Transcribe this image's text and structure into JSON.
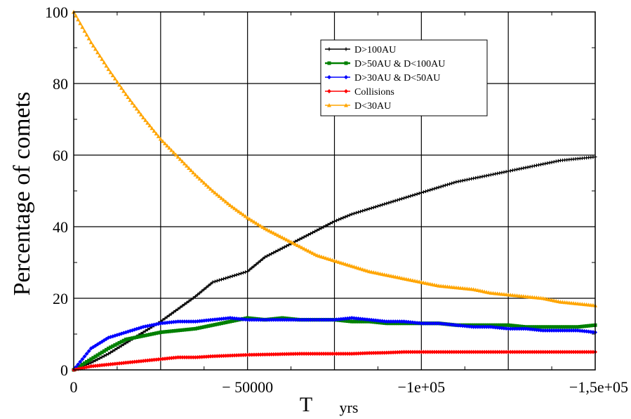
{
  "chart_data": {
    "type": "line",
    "ylabel": "Percentage of comets",
    "xlabel_main": "T",
    "xlabel_unit": "yrs",
    "xlim": [
      0,
      150000
    ],
    "ylim": [
      0,
      100
    ],
    "grid": true,
    "legend_position": "top-right",
    "x_ticks": [
      {
        "value": 0,
        "label": "0"
      },
      {
        "value": 50000,
        "label": "− 50000"
      },
      {
        "value": 100000,
        "label": "−1e+05"
      },
      {
        "value": 150000,
        "label": "−1,5e+05"
      }
    ],
    "y_ticks": [
      {
        "value": 0,
        "label": "0"
      },
      {
        "value": 20,
        "label": "20"
      },
      {
        "value": 40,
        "label": "40"
      },
      {
        "value": 60,
        "label": "60"
      },
      {
        "value": 80,
        "label": "80"
      },
      {
        "value": 100,
        "label": "100"
      }
    ],
    "series": [
      {
        "name": "D>100AU",
        "color": "#000000",
        "marker": "plus",
        "x": [
          0,
          5000,
          10000,
          15000,
          20000,
          25000,
          30000,
          35000,
          40000,
          45000,
          50000,
          55000,
          60000,
          65000,
          70000,
          75000,
          80000,
          85000,
          90000,
          95000,
          100000,
          105000,
          110000,
          115000,
          120000,
          125000,
          130000,
          135000,
          140000,
          145000,
          150000
        ],
        "y": [
          0,
          2,
          4.5,
          7.5,
          10.5,
          13.5,
          17,
          20.5,
          24.5,
          26,
          27.5,
          31.5,
          34,
          36.5,
          39,
          41.5,
          43.5,
          45,
          46.5,
          48,
          49.5,
          51,
          52.5,
          53.5,
          54.5,
          55.5,
          56.5,
          57.5,
          58.5,
          59,
          59.5
        ]
      },
      {
        "name": "D>50AU  & D<100AU",
        "color": "#008000",
        "marker": "square",
        "x": [
          0,
          5000,
          10000,
          15000,
          20000,
          25000,
          30000,
          35000,
          40000,
          45000,
          50000,
          55000,
          60000,
          65000,
          70000,
          75000,
          80000,
          85000,
          90000,
          95000,
          100000,
          105000,
          110000,
          115000,
          120000,
          125000,
          130000,
          135000,
          140000,
          145000,
          150000
        ],
        "y": [
          0,
          3,
          6,
          8.5,
          9.5,
          10.5,
          11,
          11.5,
          12.5,
          13.5,
          14.5,
          14,
          14.5,
          14,
          14,
          14,
          13.5,
          13.5,
          13,
          13,
          13,
          13,
          12.5,
          12.5,
          12.5,
          12.5,
          12,
          12,
          12,
          12,
          12.5
        ]
      },
      {
        "name": "D>30AU & D<50AU",
        "color": "#0000ff",
        "marker": "diamond",
        "x": [
          0,
          5000,
          10000,
          15000,
          20000,
          25000,
          30000,
          35000,
          40000,
          45000,
          50000,
          55000,
          60000,
          65000,
          70000,
          75000,
          80000,
          85000,
          90000,
          95000,
          100000,
          105000,
          110000,
          115000,
          120000,
          125000,
          130000,
          135000,
          140000,
          145000,
          150000
        ],
        "y": [
          0,
          6,
          9,
          10.5,
          12,
          13,
          13.5,
          13.5,
          14,
          14.5,
          14,
          14,
          14,
          14,
          14,
          14,
          14.5,
          14,
          13.5,
          13.5,
          13,
          13,
          12.5,
          12,
          12,
          11.5,
          11.5,
          11,
          11,
          11,
          10.5
        ]
      },
      {
        "name": "Collisions",
        "color": "#ff0000",
        "marker": "diamond",
        "x": [
          0,
          5000,
          10000,
          15000,
          20000,
          25000,
          30000,
          35000,
          40000,
          45000,
          50000,
          55000,
          60000,
          65000,
          70000,
          75000,
          80000,
          85000,
          90000,
          95000,
          100000,
          105000,
          110000,
          115000,
          120000,
          125000,
          130000,
          135000,
          140000,
          145000,
          150000
        ],
        "y": [
          0,
          1,
          1.5,
          2,
          2.5,
          3,
          3.5,
          3.5,
          3.8,
          4,
          4.2,
          4.3,
          4.4,
          4.5,
          4.5,
          4.5,
          4.5,
          4.7,
          4.8,
          5,
          5,
          5,
          5,
          5,
          5,
          5,
          5,
          5,
          5,
          5,
          5
        ]
      },
      {
        "name": "D<30AU",
        "color": "#ffa500",
        "marker": "triangle",
        "x": [
          0,
          5000,
          10000,
          15000,
          20000,
          25000,
          30000,
          35000,
          40000,
          45000,
          50000,
          55000,
          60000,
          65000,
          70000,
          75000,
          80000,
          85000,
          90000,
          95000,
          100000,
          105000,
          110000,
          115000,
          120000,
          125000,
          130000,
          135000,
          140000,
          145000,
          150000
        ],
        "y": [
          100,
          91.5,
          84,
          77,
          70.5,
          64.5,
          59.5,
          54.5,
          50,
          46,
          42.5,
          39.5,
          37,
          34.5,
          32,
          30.5,
          29,
          27.5,
          26.5,
          25.5,
          24.5,
          23.5,
          23,
          22.5,
          21.5,
          21,
          20.5,
          20,
          19,
          18.5,
          18
        ]
      }
    ]
  }
}
